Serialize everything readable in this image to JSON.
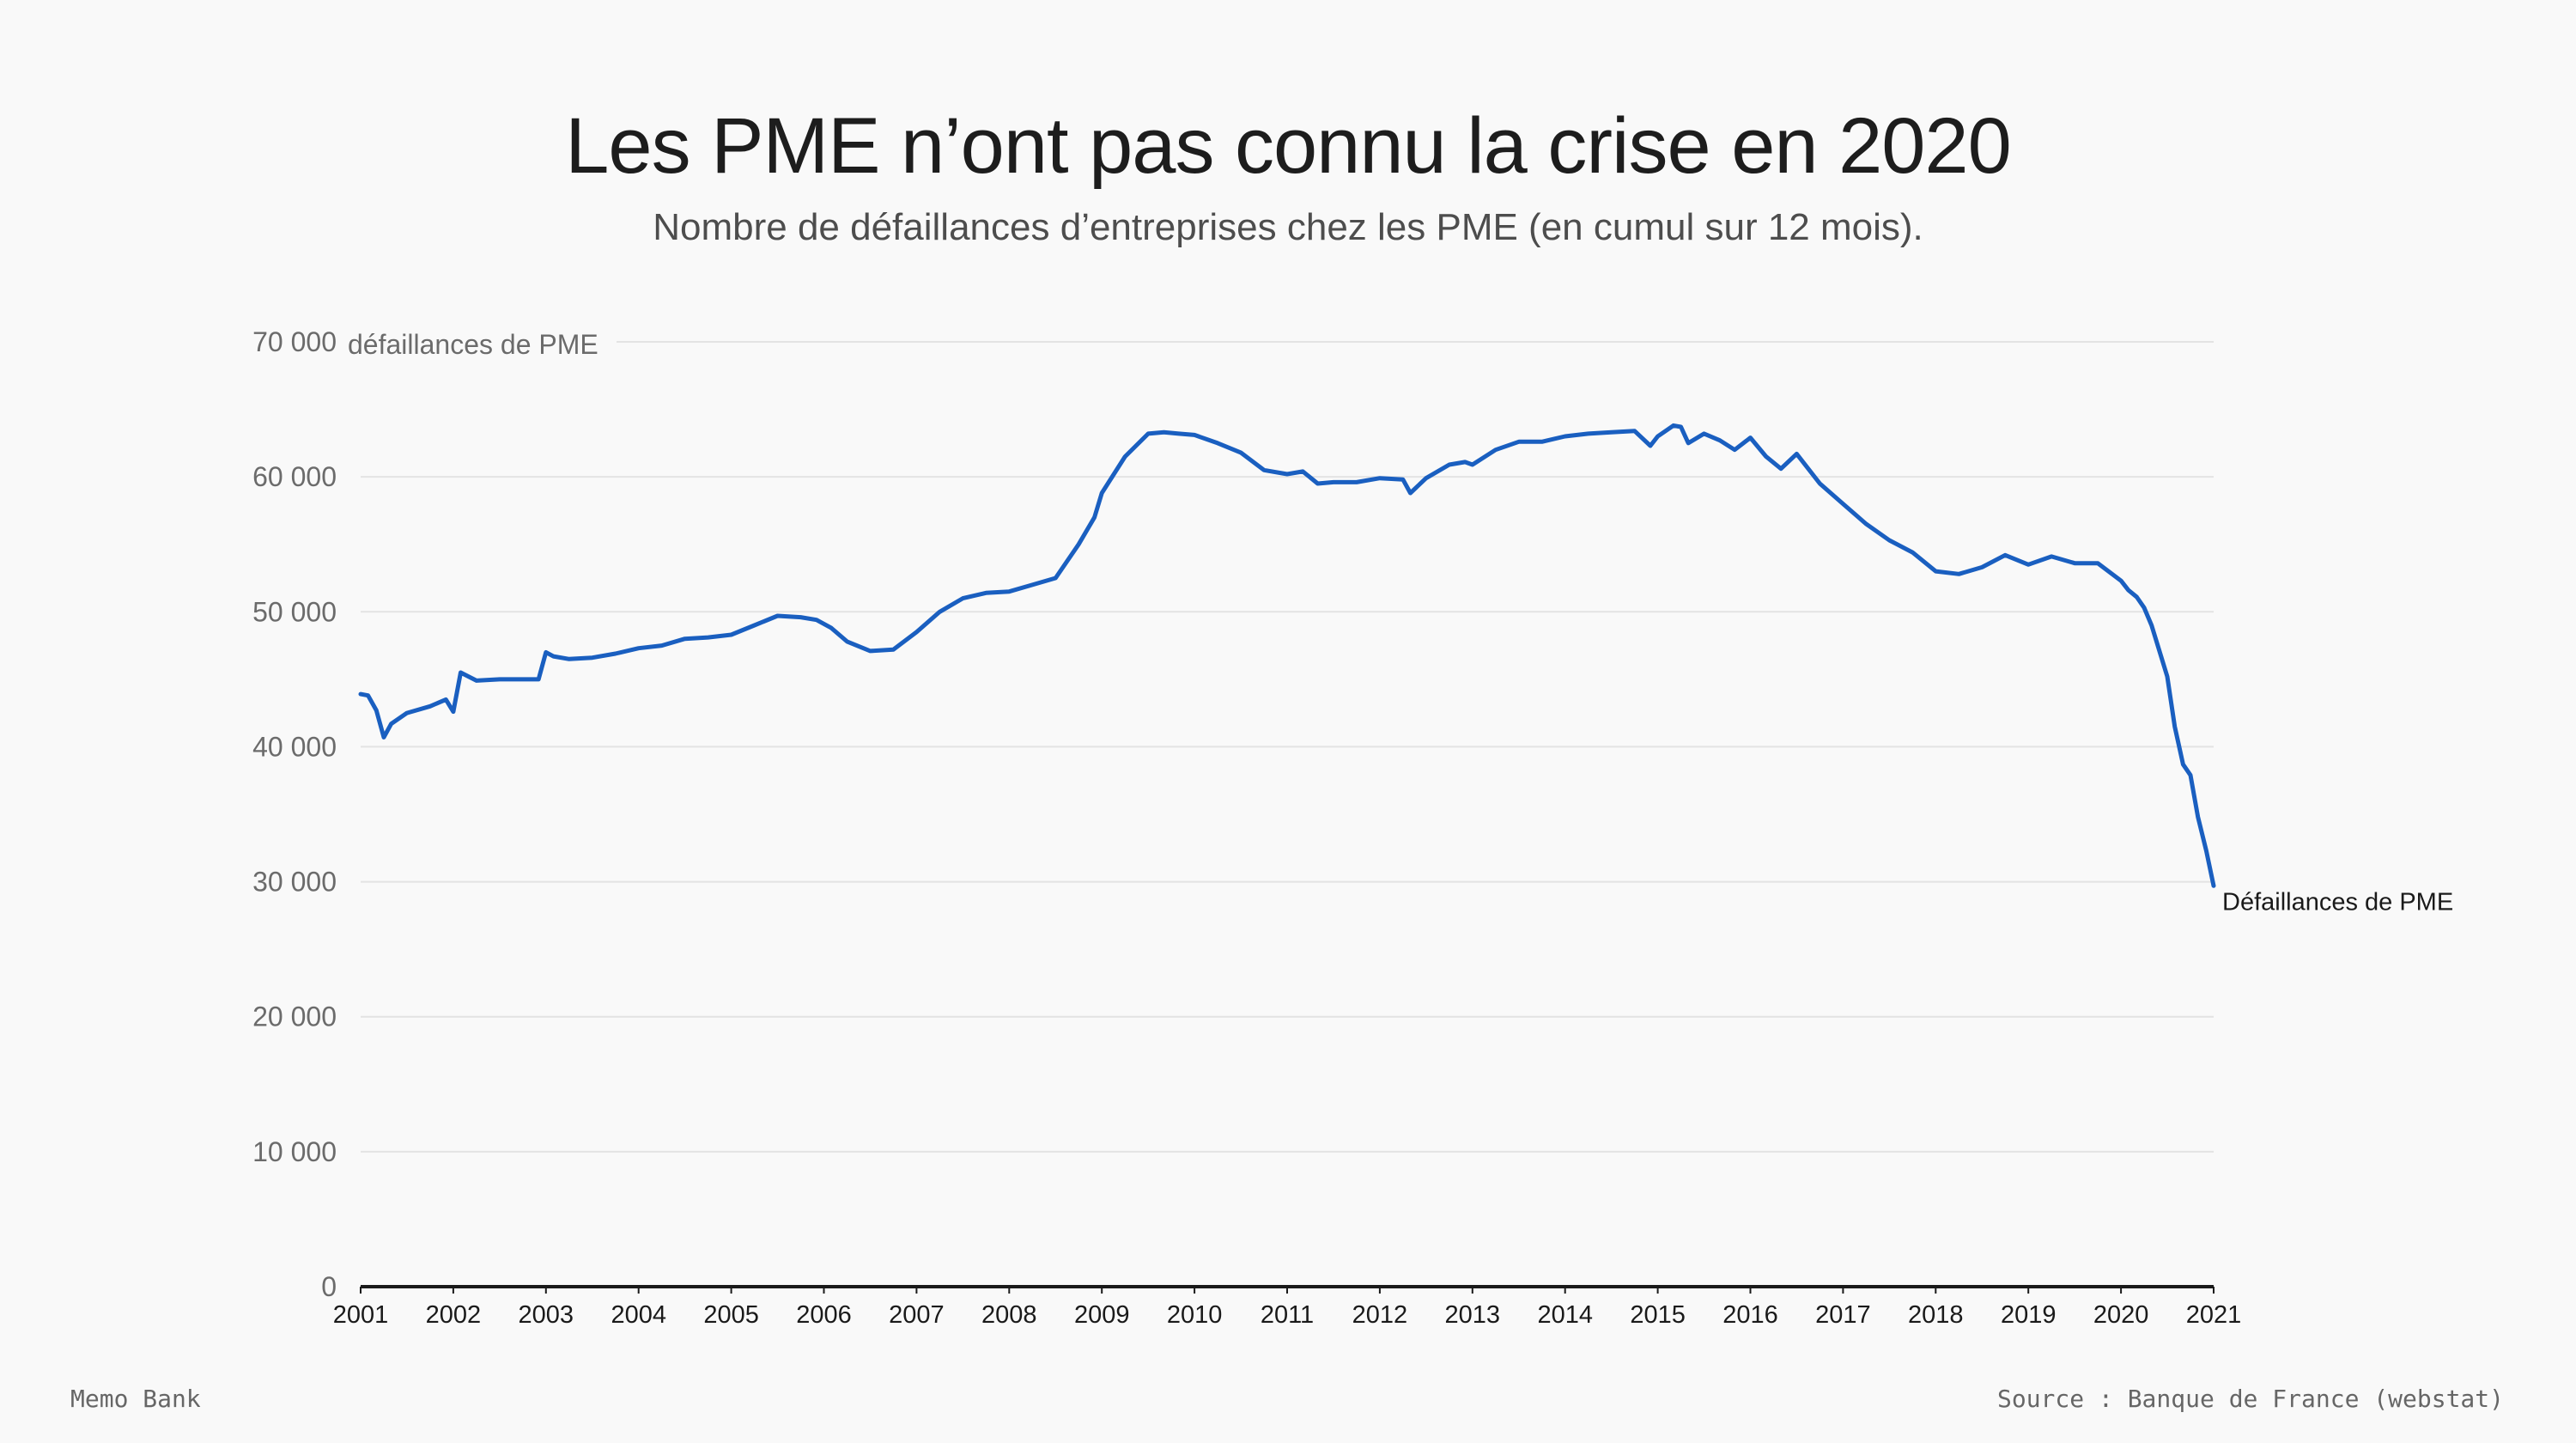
{
  "header": {
    "title": "Les PME n’ont pas connu la crise en 2020",
    "subtitle": "Nombre de défaillances d’entreprises chez les PME (en cumul sur 12 mois)."
  },
  "footer": {
    "brand": "Memo Bank",
    "source": "Source : Banque de France (webstat)"
  },
  "colors": {
    "line": "#1a5fc0",
    "grid": "#e3e3e3",
    "axis": "#1a1a1a",
    "tick_text": "#6b6b6b",
    "background": "#f9f9f9"
  },
  "chart_data": {
    "type": "line",
    "title": "Les PME n’ont pas connu la crise en 2020",
    "subtitle": "Nombre de défaillances d’entreprises chez les PME (en cumul sur 12 mois).",
    "ylabel": "défaillances de PME",
    "xlabel": "",
    "ylim": [
      0,
      70000
    ],
    "xlim": [
      2001,
      2021
    ],
    "grid": true,
    "y_ticks": [
      0,
      10000,
      20000,
      30000,
      40000,
      50000,
      60000,
      70000
    ],
    "y_tick_labels": [
      "0",
      "10 000",
      "20 000",
      "30 000",
      "40 000",
      "50 000",
      "60 000",
      "70 000"
    ],
    "x_ticks": [
      "2001",
      "2002",
      "2003",
      "2004",
      "2005",
      "2006",
      "2007",
      "2008",
      "2009",
      "2010",
      "2011",
      "2012",
      "2013",
      "2014",
      "2015",
      "2016",
      "2017",
      "2018",
      "2019",
      "2020",
      "2021"
    ],
    "series": [
      {
        "name": "Défaillances de PME",
        "x": [
          2001.0,
          2001.08,
          2001.17,
          2001.25,
          2001.33,
          2001.5,
          2001.75,
          2001.92,
          2002.0,
          2002.08,
          2002.25,
          2002.5,
          2002.75,
          2002.92,
          2003.0,
          2003.08,
          2003.25,
          2003.5,
          2003.75,
          2004.0,
          2004.25,
          2004.5,
          2004.75,
          2005.0,
          2005.25,
          2005.5,
          2005.75,
          2005.92,
          2006.08,
          2006.25,
          2006.5,
          2006.75,
          2007.0,
          2007.25,
          2007.5,
          2007.75,
          2008.0,
          2008.25,
          2008.5,
          2008.75,
          2008.92,
          2009.0,
          2009.25,
          2009.5,
          2009.67,
          2009.83,
          2010.0,
          2010.25,
          2010.5,
          2010.75,
          2011.0,
          2011.17,
          2011.33,
          2011.5,
          2011.75,
          2012.0,
          2012.25,
          2012.33,
          2012.5,
          2012.75,
          2012.92,
          2013.0,
          2013.25,
          2013.5,
          2013.75,
          2014.0,
          2014.25,
          2014.5,
          2014.75,
          2014.92,
          2015.0,
          2015.17,
          2015.25,
          2015.33,
          2015.5,
          2015.67,
          2015.83,
          2016.0,
          2016.17,
          2016.33,
          2016.5,
          2016.75,
          2017.0,
          2017.25,
          2017.5,
          2017.75,
          2018.0,
          2018.25,
          2018.5,
          2018.75,
          2019.0,
          2019.25,
          2019.5,
          2019.75,
          2020.0,
          2020.08,
          2020.17,
          2020.25,
          2020.33,
          2020.5,
          2020.58,
          2020.67,
          2020.75,
          2020.83,
          2020.92,
          2021.0
        ],
        "values": [
          43900,
          43800,
          42700,
          40700,
          41700,
          42500,
          43000,
          43500,
          42600,
          45500,
          44900,
          45000,
          45000,
          45000,
          47000,
          46700,
          46500,
          46600,
          46900,
          47300,
          47500,
          48000,
          48100,
          48300,
          49000,
          49700,
          49600,
          49400,
          48800,
          47800,
          47100,
          47200,
          48500,
          50000,
          51000,
          51400,
          51500,
          52000,
          52500,
          55000,
          57000,
          58800,
          61500,
          63200,
          63300,
          63200,
          63100,
          62500,
          61800,
          60500,
          60200,
          60400,
          59500,
          59600,
          59600,
          59900,
          59800,
          58800,
          59900,
          60900,
          61100,
          60900,
          62000,
          62600,
          62600,
          63000,
          63200,
          63300,
          63400,
          62300,
          63000,
          63800,
          63700,
          62500,
          63200,
          62700,
          62000,
          62900,
          61500,
          60600,
          61700,
          59500,
          58000,
          56500,
          55300,
          54400,
          53000,
          52800,
          53300,
          54200,
          53500,
          54100,
          53600,
          53600,
          52300,
          51600,
          51100,
          50300,
          49000,
          45200,
          41500,
          38700,
          37900,
          34800,
          32300,
          29700
        ]
      }
    ],
    "annotations": [
      "Défaillances de PME"
    ]
  }
}
